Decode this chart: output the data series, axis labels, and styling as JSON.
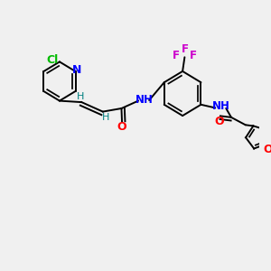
{
  "bg_color": "#f0f0f0",
  "atom_colors": {
    "N": "#0000ff",
    "O": "#ff0000",
    "Cl": "#00bb00",
    "F": "#cc00cc",
    "H_label": "#008080"
  },
  "bond_color": "#000000",
  "bond_width": 1.4,
  "figsize": [
    3.0,
    3.0
  ],
  "dpi": 100,
  "xlim": [
    0,
    10
  ],
  "ylim": [
    0,
    10
  ]
}
